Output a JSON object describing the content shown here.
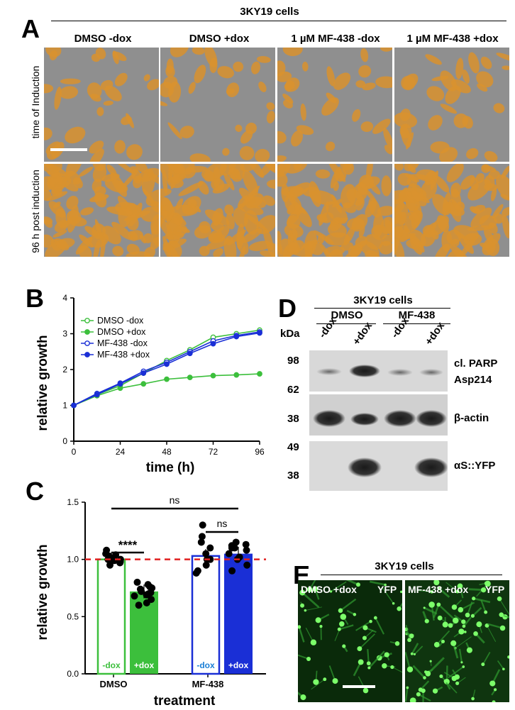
{
  "panel_letters": {
    "a": "A",
    "b": "B",
    "c": "C",
    "d": "D",
    "e": "E"
  },
  "panel_a": {
    "title": "3KY19 cells",
    "columns": [
      "DMSO -dox",
      "DMSO +dox",
      "1 µM MF-438 -dox",
      "1 µM MF-438 +dox"
    ],
    "rows": [
      "time of Induction",
      "96 h post induction"
    ],
    "colors": {
      "cells": "#d9922e",
      "background": "#8f8f8f"
    }
  },
  "chart_data": [
    {
      "type": "line",
      "panel": "B",
      "xlabel": "time (h)",
      "ylabel": "relative growth",
      "xlim": [
        0,
        96
      ],
      "ylim": [
        0,
        4
      ],
      "xticks": [
        0,
        24,
        48,
        72,
        96
      ],
      "yticks": [
        0,
        1,
        2,
        3,
        4
      ],
      "legend_position": "top-left",
      "x": [
        0,
        12,
        24,
        36,
        48,
        60,
        72,
        84,
        96
      ],
      "series": [
        {
          "name": "DMSO -dox",
          "color": "#3cbf3c",
          "marker": "open-circle",
          "values": [
            1.0,
            1.3,
            1.55,
            1.9,
            2.25,
            2.55,
            2.9,
            3.0,
            3.1
          ]
        },
        {
          "name": "DMSO +dox",
          "color": "#3cbf3c",
          "marker": "filled-circle",
          "values": [
            1.0,
            1.27,
            1.48,
            1.6,
            1.73,
            1.78,
            1.83,
            1.85,
            1.88
          ]
        },
        {
          "name": "MF-438 -dox",
          "color": "#1a2fd6",
          "marker": "open-circle",
          "values": [
            1.0,
            1.33,
            1.62,
            1.95,
            2.2,
            2.5,
            2.8,
            2.95,
            3.05
          ]
        },
        {
          "name": "MF-438 +dox",
          "color": "#1a2fd6",
          "marker": "filled-circle",
          "values": [
            1.0,
            1.3,
            1.6,
            1.9,
            2.15,
            2.45,
            2.72,
            2.92,
            3.02
          ]
        }
      ]
    },
    {
      "type": "bar",
      "panel": "C",
      "xlabel": "treatment",
      "ylabel": "relative growth",
      "ylim": [
        0,
        1.5
      ],
      "yticks": [
        0.0,
        0.5,
        1.0,
        1.5
      ],
      "categories": [
        "DMSO",
        "MF-438"
      ],
      "reference_line": 1.0,
      "bars": [
        {
          "group": "DMSO",
          "label": "-dox",
          "value": 1.0,
          "color": "#3cbf3c",
          "filled": false,
          "label_color": "#3cbf3c",
          "points": [
            1.0,
            1.05,
            0.97,
            1.02,
            0.99,
            1.08,
            1.0,
            0.95,
            1.03,
            1.01,
            0.98,
            1.04
          ]
        },
        {
          "group": "DMSO",
          "label": "+dox",
          "value": 0.72,
          "color": "#3cbf3c",
          "filled": true,
          "label_color": "#ffffff",
          "points": [
            0.72,
            0.62,
            0.78,
            0.68,
            0.75,
            0.7,
            0.65,
            0.8,
            0.6,
            0.74,
            0.71,
            0.69,
            0.76
          ]
        },
        {
          "group": "MF-438",
          "label": "-dox",
          "value": 1.03,
          "color": "#1a2fd6",
          "filled": false,
          "label_color": "#1a7fd6",
          "points": [
            1.3,
            1.2,
            1.1,
            0.9,
            1.0,
            1.05,
            0.95,
            1.15,
            1.0,
            0.88
          ]
        },
        {
          "group": "MF-438",
          "label": "+dox",
          "value": 1.05,
          "color": "#1a2fd6",
          "filled": true,
          "label_color": "#ffffff",
          "points": [
            1.15,
            1.1,
            1.05,
            1.0,
            1.12,
            0.95,
            1.08,
            1.02,
            0.9,
            1.1,
            1.13
          ]
        }
      ],
      "annotations": [
        {
          "text": "ns",
          "between": [
            "DMSO -dox",
            "MF-438 +dox"
          ]
        },
        {
          "text": "****",
          "between": [
            "DMSO -dox",
            "DMSO +dox"
          ]
        },
        {
          "text": "ns",
          "between": [
            "MF-438 -dox",
            "MF-438 +dox"
          ]
        }
      ]
    }
  ],
  "panel_d": {
    "title": "3KY19 cells",
    "groups": [
      "DMSO",
      "MF-438"
    ],
    "lanes": [
      "-dox",
      "+dox",
      "-dox",
      "+dox"
    ],
    "kda_label": "kDa",
    "markers": [
      "98",
      "62",
      "38",
      "49",
      "38"
    ],
    "bands": [
      "cl. PARP",
      "Asp214",
      "β-actin",
      "αS::YFP"
    ]
  },
  "panel_e": {
    "title": "3KY19 cells",
    "images": [
      {
        "label": "DMSO +dox",
        "channel": "YFP"
      },
      {
        "label": "MF-438 +dox",
        "channel": "YFP"
      }
    ]
  }
}
